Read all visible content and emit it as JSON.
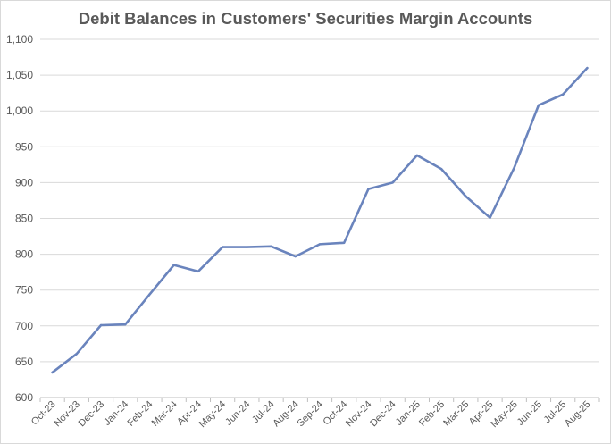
{
  "chart_data": {
    "type": "line",
    "title": "Debit Balances in Customers' Securities Margin Accounts",
    "xlabel": "",
    "ylabel": "",
    "ylim": [
      600,
      1100
    ],
    "yticks": [
      600,
      650,
      700,
      750,
      800,
      850,
      900,
      950,
      1000,
      1050,
      1100
    ],
    "ytick_labels": [
      "600",
      "650",
      "700",
      "750",
      "800",
      "850",
      "900",
      "950",
      "1,000",
      "1,050",
      "1,100"
    ],
    "grid": true,
    "legend": "none",
    "line_color": "#6a84bd",
    "categories": [
      "Oct-23",
      "Nov-23",
      "Dec-23",
      "Jan-24",
      "Feb-24",
      "Mar-24",
      "Apr-24",
      "May-24",
      "Jun-24",
      "Jul-24",
      "Aug-24",
      "Sep-24",
      "Oct-24",
      "Nov-24",
      "Dec-24",
      "Jan-25",
      "Feb-25",
      "Mar-25",
      "Apr-25",
      "May-25",
      "Jun-25",
      "Jul-25",
      "Aug-25"
    ],
    "series": [
      {
        "values": [
          635,
          661,
          701,
          702,
          744,
          785,
          776,
          810,
          810,
          811,
          797,
          814,
          816,
          891,
          900,
          938,
          919,
          881,
          851,
          921,
          1008,
          1023,
          1060
        ]
      }
    ]
  }
}
